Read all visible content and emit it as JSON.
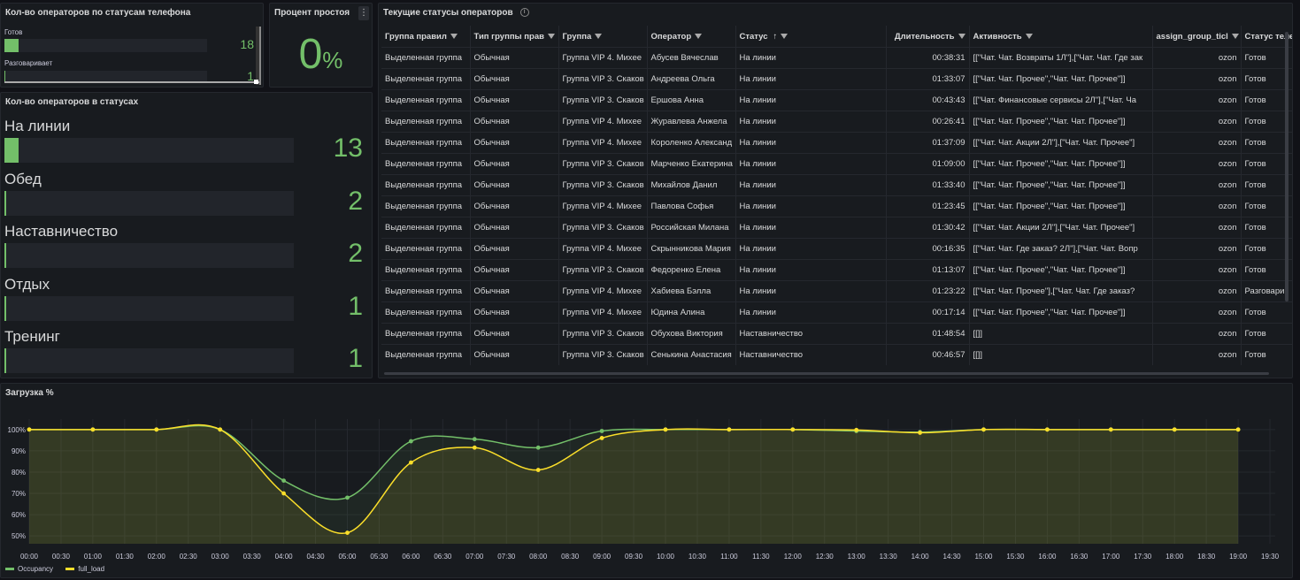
{
  "phone_status": {
    "title": "Кол-во операторов по статусам телефона",
    "items": [
      {
        "label": "Готов",
        "value": "18",
        "fill": 1.0
      },
      {
        "label": "Разговаривает",
        "value": "1",
        "fill": 0.056
      }
    ]
  },
  "idle": {
    "title": "Процент простоя",
    "value": "0",
    "unit": "%",
    "menu": "⋮"
  },
  "status_counts": {
    "title": "Кол-во операторов в статусах",
    "items": [
      {
        "label": "На линии",
        "value": "13",
        "fill": 1.0
      },
      {
        "label": "Обед",
        "value": "2",
        "fill": 0.154
      },
      {
        "label": "Наставничество",
        "value": "2",
        "fill": 0.154
      },
      {
        "label": "Отдых",
        "value": "1",
        "fill": 0.077
      },
      {
        "label": "Тренинг",
        "value": "1",
        "fill": 0.077
      }
    ]
  },
  "ops_table": {
    "title": "Текущие статусы операторов",
    "info": "i",
    "columns": [
      "Группа правил",
      "Тип группы прав",
      "Группа",
      "Оператор",
      "Статус",
      "Длительность",
      "Активность",
      "assign_group_ticl",
      "Статус теле"
    ],
    "sort_indicator": "↑",
    "rows": [
      [
        "Выделенная группа",
        "Обычная",
        "Группа VIP 4. Михее",
        "Абусев Вячеслав",
        "На линии",
        "00:38:31",
        "[[\"Чат. Чат. Возвраты 1Л\"],[\"Чат. Чат. Где зак",
        "ozon",
        "Готов"
      ],
      [
        "Выделенная группа",
        "Обычная",
        "Группа VIP 3. Скаков",
        "Андреева Ольга",
        "На линии",
        "01:33:07",
        "[[\"Чат. Чат. Прочее\",\"Чат. Чат. Прочее\"]]",
        "ozon",
        "Готов"
      ],
      [
        "Выделенная группа",
        "Обычная",
        "Группа VIP 3. Скаков",
        "Ершова Анна",
        "На линии",
        "00:43:43",
        "[[\"Чат. Финансовые сервисы 2Л\"],[\"Чат. Ча",
        "ozon",
        "Готов"
      ],
      [
        "Выделенная группа",
        "Обычная",
        "Группа VIP 4. Михее",
        "Журавлева Анжела",
        "На линии",
        "00:26:41",
        "[[\"Чат. Чат. Прочее\",\"Чат. Чат. Прочее\"]]",
        "ozon",
        "Готов"
      ],
      [
        "Выделенная группа",
        "Обычная",
        "Группа VIP 4. Михее",
        "Короленко Александ",
        "На линии",
        "01:37:09",
        "[[\"Чат. Чат. Акции 2Л\"],[\"Чат. Чат. Прочее\"]",
        "ozon",
        "Готов"
      ],
      [
        "Выделенная группа",
        "Обычная",
        "Группа VIP 3. Скаков",
        "Марченко Екатерина",
        "На линии",
        "01:09:00",
        "[[\"Чат. Чат. Прочее\",\"Чат. Чат. Прочее\"]]",
        "ozon",
        "Готов"
      ],
      [
        "Выделенная группа",
        "Обычная",
        "Группа VIP 3. Скаков",
        "Михайлов Данил",
        "На линии",
        "01:33:40",
        "[[\"Чат. Чат. Прочее\",\"Чат. Чат. Прочее\"]]",
        "ozon",
        "Готов"
      ],
      [
        "Выделенная группа",
        "Обычная",
        "Группа VIP 4. Михее",
        "Павлова Софья",
        "На линии",
        "01:23:45",
        "[[\"Чат. Чат. Прочее\",\"Чат. Чат. Прочее\"]]",
        "ozon",
        "Готов"
      ],
      [
        "Выделенная группа",
        "Обычная",
        "Группа VIP 3. Скаков",
        "Российская Милана",
        "На линии",
        "01:30:42",
        "[[\"Чат. Чат. Акции 2Л\"],[\"Чат. Чат. Прочее\"]",
        "ozon",
        "Готов"
      ],
      [
        "Выделенная группа",
        "Обычная",
        "Группа VIP 4. Михее",
        "Скрынникова Мария",
        "На линии",
        "00:16:35",
        "[[\"Чат. Чат. Где заказ? 2Л\"],[\"Чат. Чат. Вопр",
        "ozon",
        "Готов"
      ],
      [
        "Выделенная группа",
        "Обычная",
        "Группа VIP 3. Скаков",
        "Федоренко Елена",
        "На линии",
        "01:13:07",
        "[[\"Чат. Чат. Прочее\",\"Чат. Чат. Прочее\"]]",
        "ozon",
        "Готов"
      ],
      [
        "Выделенная группа",
        "Обычная",
        "Группа VIP 4. Михее",
        "Хабиева Бэлла",
        "На линии",
        "01:23:22",
        "[[\"Чат. Чат. Прочее\"],[\"Чат. Чат. Где заказ?",
        "ozon",
        "Разговарив"
      ],
      [
        "Выделенная группа",
        "Обычная",
        "Группа VIP 4. Михее",
        "Юдина Алина",
        "На линии",
        "00:17:14",
        "[[\"Чат. Чат. Прочее\",\"Чат. Чат. Прочее\"]]",
        "ozon",
        "Готов"
      ],
      [
        "Выделенная группа",
        "Обычная",
        "Группа VIP 3. Скаков",
        "Обухова Виктория",
        "Наставничество",
        "01:48:54",
        "[[]]",
        "ozon",
        "Готов"
      ],
      [
        "Выделенная группа",
        "Обычная",
        "Группа VIP 3. Скаков",
        "Сенькина Анастасия",
        "Наставничество",
        "00:46:57",
        "[[]]",
        "ozon",
        "Готов"
      ]
    ]
  },
  "chart_panel": {
    "title": "Загрузка %"
  },
  "chart_data": {
    "type": "line",
    "title": "Загрузка %",
    "x_ticks": [
      "00:00",
      "00:30",
      "01:00",
      "01:30",
      "02:00",
      "02:30",
      "03:00",
      "03:30",
      "04:00",
      "04:30",
      "05:00",
      "05:30",
      "06:00",
      "06:30",
      "07:00",
      "07:30",
      "08:00",
      "08:30",
      "09:00",
      "09:30",
      "10:00",
      "10:30",
      "11:00",
      "11:30",
      "12:00",
      "12:30",
      "13:00",
      "13:30",
      "14:00",
      "14:30",
      "15:00",
      "15:30",
      "16:00",
      "16:30",
      "17:00",
      "17:30",
      "18:00",
      "18:30",
      "19:00",
      "19:30"
    ],
    "y_ticks": [
      "50%",
      "60%",
      "70%",
      "80%",
      "90%",
      "100%"
    ],
    "ylim": [
      48,
      102
    ],
    "x": [
      "00:00",
      "01:00",
      "02:00",
      "03:00",
      "04:00",
      "05:00",
      "06:00",
      "07:00",
      "08:00",
      "09:00",
      "10:00",
      "11:00",
      "12:00",
      "13:00",
      "14:00",
      "15:00",
      "16:00",
      "17:00",
      "18:00",
      "19:00"
    ],
    "series": [
      {
        "name": "Occupancy",
        "color": "#73bf69",
        "values": [
          100,
          100,
          100,
          100,
          76,
          68,
          94.5,
          95.5,
          91.5,
          99.3,
          100,
          100,
          100,
          99.3,
          98.8,
          100,
          100,
          100,
          100,
          100
        ]
      },
      {
        "name": "full_load",
        "color": "#fade2a",
        "values": [
          100,
          100,
          100,
          100,
          70,
          51.5,
          84.5,
          91.5,
          81,
          96,
          100,
          100,
          100,
          99.8,
          98.5,
          100,
          100,
          100,
          100,
          100
        ]
      }
    ],
    "legend": "bottom-left"
  }
}
